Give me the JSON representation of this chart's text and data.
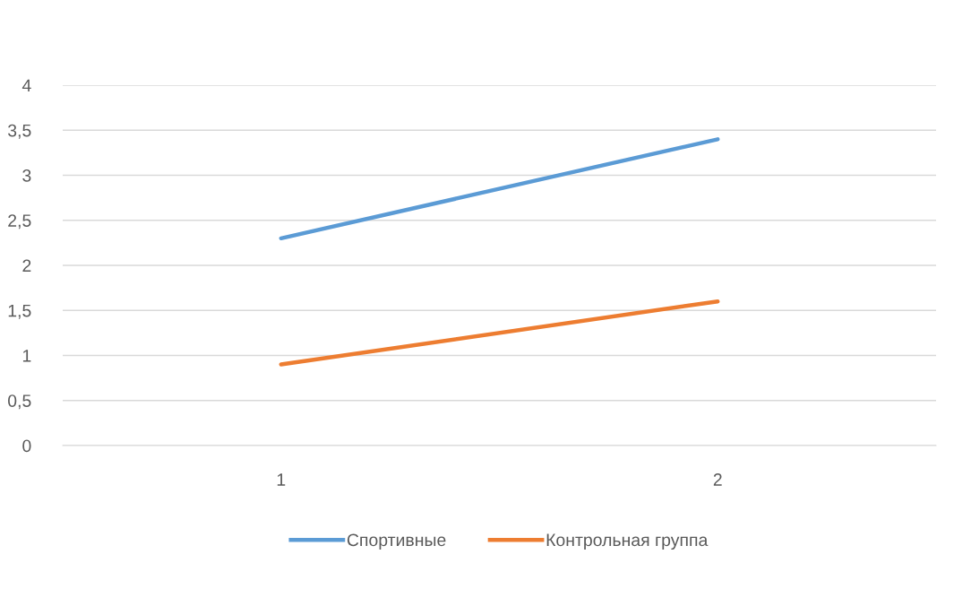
{
  "chart_data": {
    "type": "line",
    "categories": [
      "1",
      "2"
    ],
    "series": [
      {
        "name": "Спортивные",
        "color": "#5b9bd5",
        "values": [
          2.3,
          3.4
        ]
      },
      {
        "name": "Контрольная группа",
        "color": "#ed7d31",
        "values": [
          0.9,
          1.6
        ]
      }
    ],
    "ylim": [
      0,
      4
    ],
    "yticks": [
      0,
      {
        "value": 0.5,
        "label": "0,5"
      },
      1,
      {
        "value": 1.5,
        "label": "1,5"
      },
      2,
      {
        "value": 2.5,
        "label": "2,5"
      },
      3,
      {
        "value": 3.5,
        "label": "3,5"
      },
      4
    ],
    "grid": "y",
    "legend": "bottom",
    "marker": "none",
    "line_style": "solid"
  }
}
